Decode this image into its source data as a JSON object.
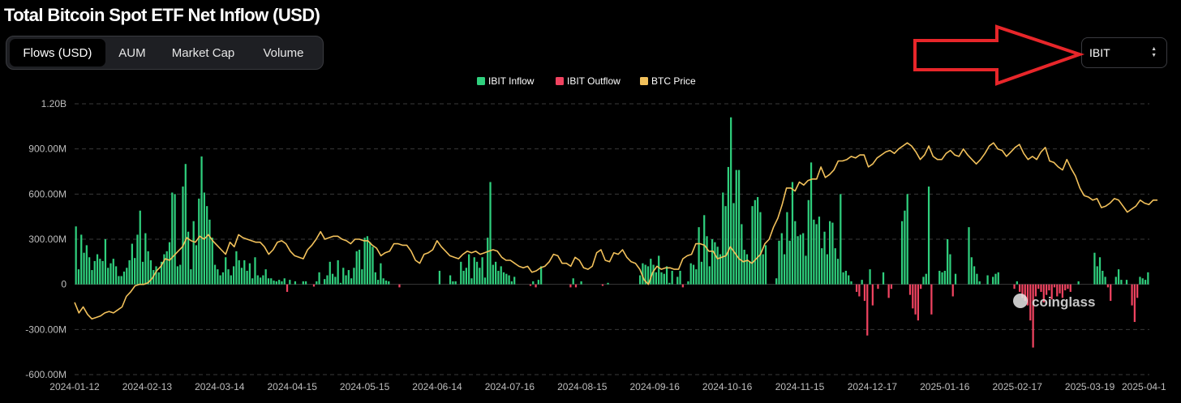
{
  "title": "Total Bitcoin Spot ETF Net Inflow (USD)",
  "tabs": [
    {
      "label": "Flows (USD)",
      "active": true
    },
    {
      "label": "AUM",
      "active": false
    },
    {
      "label": "Market Cap",
      "active": false
    },
    {
      "label": "Volume",
      "active": false
    }
  ],
  "selector": {
    "value": "IBIT"
  },
  "watermark": "coinglass",
  "colors": {
    "inflow": "#2fcf7d",
    "outflow": "#f04360",
    "price": "#f2c15b",
    "grid": "#3a3a3a",
    "annotation": "#e8262a"
  },
  "chart_data": {
    "type": "bar",
    "title": "Total Bitcoin Spot ETF Net Inflow (USD)",
    "legend": {
      "position": "top-center",
      "entries": [
        "IBIT Inflow",
        "IBIT Outflow",
        "BTC Price"
      ]
    },
    "grid": true,
    "ylim": [
      -600,
      1200
    ],
    "yunit": "M USD",
    "y_ticks": [
      {
        "value": 1200,
        "label": "1.20B"
      },
      {
        "value": 900,
        "label": "900.00M"
      },
      {
        "value": 600,
        "label": "600.00M"
      },
      {
        "value": 300,
        "label": "300.00M"
      },
      {
        "value": 0,
        "label": "0"
      },
      {
        "value": -300,
        "label": "-300.00M"
      },
      {
        "value": -600,
        "label": "-600.00M"
      }
    ],
    "x_ticks": [
      "2024-01-12",
      "2024-02-13",
      "2024-03-14",
      "2024-04-15",
      "2024-05-15",
      "2024-06-14",
      "2024-07-16",
      "2024-08-15",
      "2024-09-16",
      "2024-10-16",
      "2024-11-15",
      "2024-12-17",
      "2025-01-16",
      "2025-02-17",
      "2025-03-19",
      "2025-04-1"
    ],
    "bar_values": [
      385,
      100,
      330,
      210,
      260,
      180,
      95,
      155,
      200,
      170,
      155,
      300,
      110,
      140,
      170,
      120,
      55,
      55,
      85,
      110,
      160,
      270,
      175,
      330,
      490,
      150,
      340,
      220,
      160,
      95,
      120,
      80,
      150,
      200,
      220,
      280,
      610,
      600,
      120,
      130,
      650,
      800,
      350,
      100,
      420,
      260,
      570,
      850,
      610,
      520,
      430,
      310,
      130,
      100,
      60,
      80,
      180,
      100,
      60,
      120,
      220,
      160,
      110,
      160,
      90,
      140,
      40,
      180,
      60,
      45,
      60,
      100,
      40,
      40,
      25,
      20,
      30,
      20,
      40,
      -50,
      30,
      0,
      20,
      0,
      0,
      20,
      20,
      0,
      0,
      -15,
      20,
      80,
      0,
      35,
      60,
      150,
      70,
      50,
      160,
      10,
      110,
      60,
      95,
      40,
      110,
      220,
      230,
      100,
      310,
      320,
      280,
      250,
      80,
      30,
      140,
      40,
      25,
      20,
      0,
      0,
      0,
      -20,
      0,
      0,
      0,
      0,
      0,
      0,
      0,
      0,
      0,
      0,
      0,
      0,
      0,
      0,
      90,
      0,
      0,
      0,
      60,
      20,
      20,
      0,
      150,
      90,
      110,
      200,
      40,
      180,
      150,
      110,
      180,
      45,
      310,
      680,
      130,
      150,
      90,
      120,
      80,
      70,
      60,
      20,
      50,
      0,
      0,
      0,
      0,
      0,
      -10,
      20,
      -20,
      30,
      120,
      0,
      0,
      0,
      0,
      0,
      0,
      0,
      0,
      0,
      0,
      -20,
      40,
      -20,
      0,
      20,
      0,
      0,
      0,
      0,
      0,
      0,
      0,
      -10,
      0,
      10,
      0,
      0,
      0,
      0,
      0,
      0,
      0,
      0,
      0,
      0,
      0,
      60,
      140,
      130,
      120,
      170,
      130,
      80,
      190,
      80,
      70,
      120,
      10,
      90,
      0,
      50,
      90,
      -20,
      0,
      20,
      140,
      130,
      100,
      380,
      150,
      460,
      320,
      120,
      300,
      280,
      250,
      200,
      610,
      520,
      780,
      1110,
      540,
      760,
      760,
      400,
      230,
      200,
      150,
      520,
      560,
      580,
      480,
      200,
      260,
      0,
      0,
      0,
      40,
      290,
      340,
      200,
      480,
      290,
      680,
      420,
      320,
      330,
      340,
      190,
      560,
      810,
      430,
      400,
      450,
      240,
      350,
      200,
      420,
      410,
      240,
      170,
      600,
      80,
      90,
      60,
      20,
      0,
      -50,
      -80,
      30,
      -110,
      -340,
      100,
      -140,
      0,
      -30,
      0,
      80,
      0,
      -90,
      -30,
      0,
      0,
      0,
      420,
      490,
      600,
      -70,
      -160,
      -200,
      -240,
      -30,
      50,
      70,
      650,
      -200,
      0,
      0,
      90,
      80,
      90,
      300,
      200,
      -80,
      70,
      0,
      0,
      0,
      0,
      380,
      180,
      120,
      70,
      20,
      0,
      0,
      60,
      0,
      50,
      70,
      80,
      0,
      0,
      0,
      0,
      0,
      -30,
      20,
      -50,
      -90,
      -110,
      -140,
      -240,
      -420,
      -80,
      -30,
      -50,
      -120,
      -70,
      -40,
      -100,
      -20,
      -80,
      -60,
      -90,
      -40,
      -30,
      -50,
      0,
      0,
      20,
      0,
      0,
      0,
      0,
      0,
      210,
      120,
      180,
      90,
      50,
      -20,
      -110,
      0,
      50,
      100,
      30,
      0,
      30,
      0,
      -140,
      -250,
      -90,
      50,
      40,
      30,
      80
    ],
    "series": [
      {
        "name": "IBIT Inflow",
        "color": "#2fcf7d"
      },
      {
        "name": "IBIT Outflow",
        "color": "#f04360"
      },
      {
        "name": "BTC Price",
        "color": "#f2c15b",
        "display_values": [
          -120,
          -190,
          -150,
          -200,
          -230,
          -220,
          -210,
          -190,
          -180,
          -190,
          -170,
          -150,
          -80,
          -50,
          -10,
          0,
          0,
          10,
          40,
          90,
          120,
          170,
          160,
          190,
          220,
          250,
          310,
          290,
          280,
          320,
          300,
          330,
          290,
          260,
          230,
          200,
          280,
          250,
          330,
          310,
          300,
          290,
          280,
          280,
          250,
          200,
          230,
          280,
          290,
          270,
          220,
          190,
          180,
          170,
          230,
          260,
          300,
          350,
          300,
          310,
          320,
          320,
          300,
          290,
          270,
          300,
          300,
          290,
          290,
          260,
          240,
          190,
          210,
          220,
          270,
          270,
          260,
          260,
          220,
          160,
          140,
          200,
          210,
          230,
          290,
          250,
          220,
          190,
          180,
          170,
          200,
          220,
          210,
          220,
          200,
          210,
          220,
          230,
          220,
          180,
          160,
          160,
          140,
          120,
          110,
          120,
          80,
          90,
          110,
          120,
          150,
          200,
          190,
          140,
          140,
          120,
          180,
          160,
          110,
          100,
          120,
          210,
          230,
          160,
          150,
          210,
          200,
          230,
          180,
          150,
          140,
          100,
          30,
          0,
          80,
          120,
          100,
          110,
          110,
          100,
          100,
          170,
          190,
          200,
          270,
          270,
          260,
          220,
          220,
          170,
          180,
          190,
          250,
          210,
          170,
          150,
          160,
          140,
          170,
          200,
          270,
          300,
          380,
          440,
          530,
          640,
          640,
          620,
          680,
          660,
          690,
          700,
          700,
          780,
          710,
          730,
          760,
          820,
          820,
          830,
          850,
          840,
          860,
          860,
          780,
          800,
          840,
          860,
          880,
          890,
          870,
          900,
          920,
          940,
          920,
          880,
          830,
          860,
          920,
          850,
          830,
          830,
          870,
          890,
          860,
          850,
          900,
          860,
          830,
          800,
          830,
          870,
          920,
          940,
          900,
          890,
          850,
          880,
          910,
          930,
          870,
          830,
          850,
          830,
          880,
          910,
          820,
          810,
          780,
          760,
          830,
          770,
          720,
          640,
          590,
          580,
          560,
          570,
          510,
          520,
          540,
          570,
          560,
          520,
          480,
          500,
          520,
          560,
          540,
          530,
          560,
          560
        ]
      }
    ]
  }
}
